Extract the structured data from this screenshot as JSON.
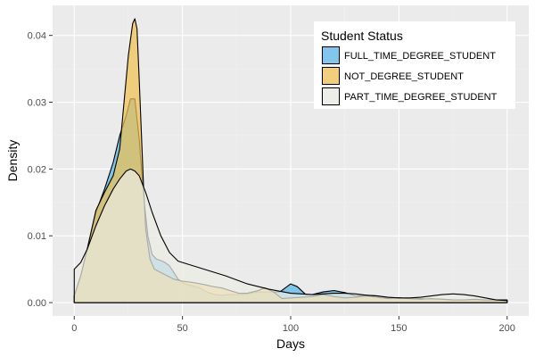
{
  "chart_data": {
    "type": "area",
    "xlabel": "Days",
    "ylabel": "Density",
    "xlim": [
      -10,
      210
    ],
    "ylim": [
      -0.002,
      0.0445
    ],
    "x_ticks": [
      0,
      50,
      100,
      150,
      200
    ],
    "y_ticks": [
      0.0,
      0.01,
      0.02,
      0.03,
      0.04
    ],
    "x_tick_labels": [
      "0",
      "50",
      "100",
      "150",
      "200"
    ],
    "y_tick_labels": [
      "0.00",
      "0.01",
      "0.02",
      "0.03",
      "0.04"
    ],
    "grid": true,
    "legend": {
      "title": "Student Status",
      "placement": "top-right",
      "entries": [
        "FULL_TIME_DEGREE_STUDENT",
        "NOT_DEGREE_STUDENT",
        "PART_TIME_DEGREE_STUDENT"
      ]
    },
    "series": [
      {
        "name": "FULL_TIME_DEGREE_STUDENT",
        "color": "#56B4E9",
        "points": [
          [
            0,
            0.001
          ],
          [
            3,
            0.004
          ],
          [
            6,
            0.008
          ],
          [
            10,
            0.0135
          ],
          [
            14,
            0.017
          ],
          [
            18,
            0.021
          ],
          [
            21,
            0.025
          ],
          [
            24,
            0.028
          ],
          [
            26,
            0.0305
          ],
          [
            28,
            0.0305
          ],
          [
            30,
            0.0245
          ],
          [
            32,
            0.016
          ],
          [
            34,
            0.01
          ],
          [
            36,
            0.0072
          ],
          [
            38,
            0.0065
          ],
          [
            40,
            0.0063
          ],
          [
            42,
            0.006
          ],
          [
            44,
            0.0055
          ],
          [
            46,
            0.0045
          ],
          [
            48,
            0.0035
          ],
          [
            50,
            0.003
          ],
          [
            52,
            0.0027
          ],
          [
            55,
            0.0025
          ],
          [
            58,
            0.0022
          ],
          [
            60,
            0.0018
          ],
          [
            62,
            0.0015
          ],
          [
            65,
            0.0012
          ],
          [
            68,
            0.0011
          ],
          [
            72,
            0.0012
          ],
          [
            76,
            0.0012
          ],
          [
            80,
            0.0013
          ],
          [
            85,
            0.0016
          ],
          [
            90,
            0.0016
          ],
          [
            95,
            0.0016
          ],
          [
            100,
            0.0028
          ],
          [
            103,
            0.0024
          ],
          [
            107,
            0.0012
          ],
          [
            110,
            0.0012
          ],
          [
            115,
            0.0016
          ],
          [
            120,
            0.0018
          ],
          [
            125,
            0.0015
          ],
          [
            130,
            0.001
          ],
          [
            135,
            0.0011
          ],
          [
            140,
            0.001
          ],
          [
            145,
            0.0007
          ],
          [
            150,
            0.0007
          ],
          [
            155,
            0.0006
          ],
          [
            160,
            0.0006
          ],
          [
            165,
            0.0005
          ],
          [
            170,
            0.0005
          ],
          [
            175,
            0.0004
          ],
          [
            180,
            0.0004
          ],
          [
            185,
            0.0003
          ],
          [
            190,
            0.0003
          ],
          [
            195,
            0.0003
          ],
          [
            200,
            0.0003
          ]
        ]
      },
      {
        "name": "NOT_DEGREE_STUDENT",
        "color": "#F0C050",
        "points": [
          [
            0,
            0.001
          ],
          [
            3,
            0.004
          ],
          [
            6,
            0.008
          ],
          [
            10,
            0.0138
          ],
          [
            14,
            0.0165
          ],
          [
            18,
            0.019
          ],
          [
            21,
            0.023
          ],
          [
            23,
            0.03
          ],
          [
            25,
            0.037
          ],
          [
            27,
            0.0418
          ],
          [
            28,
            0.0425
          ],
          [
            29,
            0.041
          ],
          [
            30,
            0.0335
          ],
          [
            31,
            0.0255
          ],
          [
            32,
            0.0175
          ],
          [
            33,
            0.011
          ],
          [
            35,
            0.0065
          ],
          [
            37,
            0.005
          ],
          [
            40,
            0.0045
          ],
          [
            43,
            0.004
          ],
          [
            46,
            0.0035
          ],
          [
            50,
            0.0032
          ],
          [
            55,
            0.003
          ],
          [
            60,
            0.0027
          ],
          [
            64,
            0.0024
          ],
          [
            68,
            0.0022
          ],
          [
            72,
            0.0018
          ],
          [
            76,
            0.0014
          ],
          [
            80,
            0.0014
          ],
          [
            85,
            0.0018
          ],
          [
            88,
            0.0022
          ],
          [
            92,
            0.0016
          ],
          [
            96,
            0.0006
          ],
          [
            100,
            0.0007
          ],
          [
            105,
            0.0008
          ],
          [
            110,
            0.0009
          ],
          [
            115,
            0.0012
          ],
          [
            120,
            0.0009
          ],
          [
            125,
            0.0007
          ],
          [
            130,
            0.0008
          ],
          [
            135,
            0.001
          ],
          [
            140,
            0.0008
          ],
          [
            145,
            0.0006
          ],
          [
            150,
            0.0007
          ],
          [
            155,
            0.0006
          ],
          [
            160,
            0.0005
          ],
          [
            165,
            0.0006
          ],
          [
            170,
            0.0005
          ],
          [
            175,
            0.0004
          ],
          [
            180,
            0.0004
          ],
          [
            185,
            0.0005
          ],
          [
            190,
            0.0004
          ],
          [
            195,
            0.0004
          ],
          [
            200,
            0.0004
          ]
        ]
      },
      {
        "name": "PART_TIME_DEGREE_STUDENT",
        "color": "#EBEBE3",
        "points": [
          [
            0,
            0.005
          ],
          [
            3,
            0.006
          ],
          [
            6,
            0.008
          ],
          [
            10,
            0.0115
          ],
          [
            14,
            0.0145
          ],
          [
            18,
            0.017
          ],
          [
            21,
            0.0185
          ],
          [
            24,
            0.0197
          ],
          [
            26,
            0.02
          ],
          [
            28,
            0.0197
          ],
          [
            30,
            0.019
          ],
          [
            33,
            0.0165
          ],
          [
            36,
            0.0135
          ],
          [
            40,
            0.01
          ],
          [
            44,
            0.0075
          ],
          [
            48,
            0.0062
          ],
          [
            52,
            0.0058
          ],
          [
            56,
            0.0054
          ],
          [
            60,
            0.005
          ],
          [
            65,
            0.0045
          ],
          [
            70,
            0.004
          ],
          [
            75,
            0.0034
          ],
          [
            80,
            0.0028
          ],
          [
            85,
            0.0024
          ],
          [
            90,
            0.002
          ],
          [
            95,
            0.0017
          ],
          [
            100,
            0.0014
          ],
          [
            105,
            0.0013
          ],
          [
            110,
            0.0012
          ],
          [
            115,
            0.0013
          ],
          [
            120,
            0.0014
          ],
          [
            125,
            0.0014
          ],
          [
            130,
            0.0013
          ],
          [
            135,
            0.0011
          ],
          [
            140,
            0.001
          ],
          [
            145,
            0.0008
          ],
          [
            150,
            0.0007
          ],
          [
            155,
            0.0007
          ],
          [
            160,
            0.0008
          ],
          [
            165,
            0.001
          ],
          [
            170,
            0.0012
          ],
          [
            175,
            0.0013
          ],
          [
            180,
            0.0012
          ],
          [
            185,
            0.001
          ],
          [
            190,
            0.0007
          ],
          [
            195,
            0.0004
          ],
          [
            200,
            0.0003
          ]
        ]
      }
    ]
  }
}
